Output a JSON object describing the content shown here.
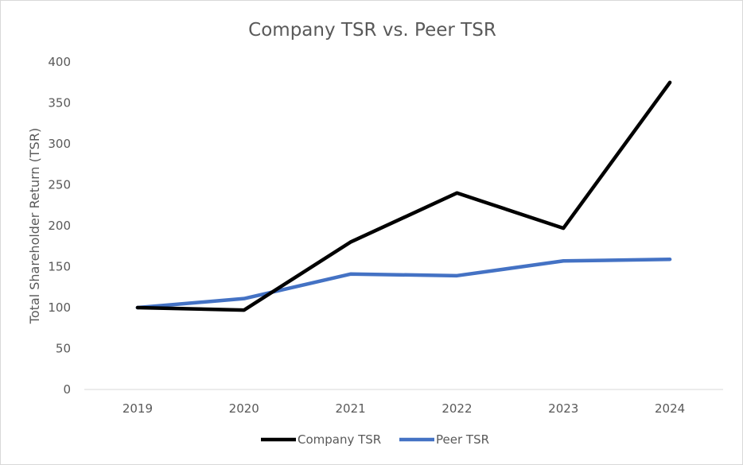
{
  "chart_data": {
    "type": "line",
    "title": "Company TSR vs. Peer TSR",
    "xlabel": "",
    "ylabel": "Total Shareholder Return (TSR)",
    "categories": [
      "2019",
      "2020",
      "2021",
      "2022",
      "2023",
      "2024"
    ],
    "ylim": [
      0,
      400
    ],
    "yticks": [
      "0",
      "50",
      "100",
      "150",
      "200",
      "250",
      "300",
      "350",
      "400"
    ],
    "grid": false,
    "legend_position": "bottom",
    "series": [
      {
        "name": "Company TSR",
        "color": "#000000",
        "values": [
          100,
          97,
          180,
          240,
          197,
          375
        ]
      },
      {
        "name": "Peer TSR",
        "color": "#4472c4",
        "values": [
          100,
          111,
          141,
          139,
          157,
          159
        ]
      }
    ]
  }
}
